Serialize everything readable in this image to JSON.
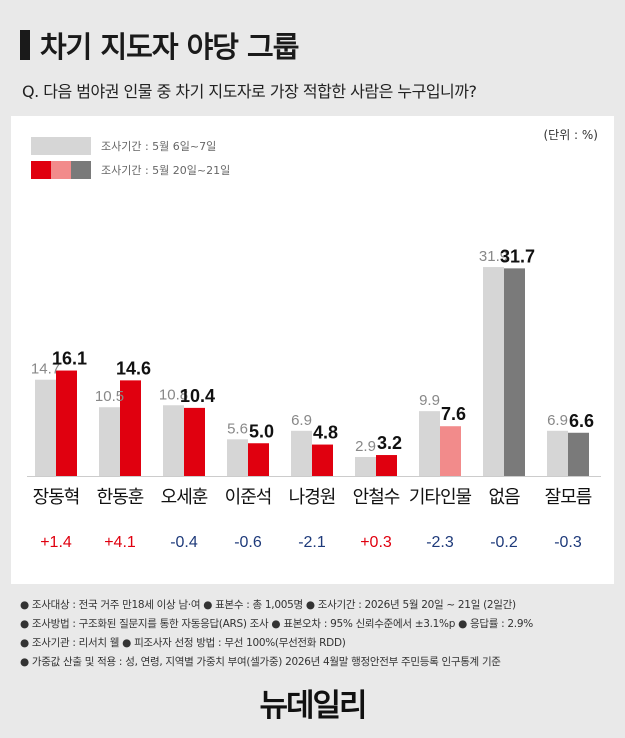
{
  "title": "차기 지도자 야당 그룹",
  "question": "Q. 다음 범야권 인물 중 차기 지도자로 가장 적합한 사람은 누구입니까?",
  "unit_label": "(단위 : %)",
  "legend": [
    {
      "label": "조사기간 : 5월 6일~7일"
    },
    {
      "label": "조사기간 : 5월 20일~21일"
    }
  ],
  "colors": {
    "prev": "#d6d6d6",
    "current_red": "#e0000f",
    "current_pink": "#f28b8b",
    "current_gray": "#7a7a7a",
    "positive_change": "#e0000f",
    "negative_change": "#1e3a7a"
  },
  "chart_data": {
    "type": "bar",
    "categories": [
      "장동혁",
      "한동훈",
      "오세훈",
      "이준석",
      "나경원",
      "안철수",
      "기타인물",
      "없음",
      "잘모름"
    ],
    "series": [
      {
        "name": "조사기간 : 5월 6일~7일",
        "values": [
          "14.7",
          "10.5",
          "10.8",
          "5.6",
          "6.9",
          "2.9",
          "9.9",
          "31.9",
          "6.9"
        ]
      },
      {
        "name": "조사기간 : 5월 20일~21일",
        "values": [
          "16.1",
          "14.6",
          "10.4",
          "5.0",
          "4.8",
          "3.2",
          "7.6",
          "31.7",
          "6.6"
        ]
      }
    ],
    "current_bar_colors": [
      "red",
      "red",
      "red",
      "red",
      "red",
      "red",
      "pink",
      "gray",
      "gray"
    ],
    "changes": [
      "+1.4",
      "+4.1",
      "-0.4",
      "-0.6",
      "-2.1",
      "+0.3",
      "-2.3",
      "-0.2",
      "-0.3"
    ],
    "ylim": [
      0,
      35
    ]
  },
  "footer": [
    "● 조사대상 : 전국 거주 만18세 이상 남·여  ● 표본수 : 총 1,005명  ● 조사기간 : 2026년 5월 20일 ~ 21일 (2일간)",
    "● 조사방법 : 구조화된 질문지를 통한 자동응답(ARS) 조사  ● 표본오차 : 95% 신뢰수준에서 ±3.1%p  ● 응답률 : 2.9%",
    "● 조사기관 : 리서치 웰  ● 피조사자 선정 방법 : 무선 100%(무선전화 RDD)",
    "● 가중값 산출 및 적용 : 성, 연령, 지역별 가중치 부여(셀가중) 2026년 4월말 행정안전부 주민등록 인구통계 기준"
  ],
  "logo": "뉴데일리"
}
